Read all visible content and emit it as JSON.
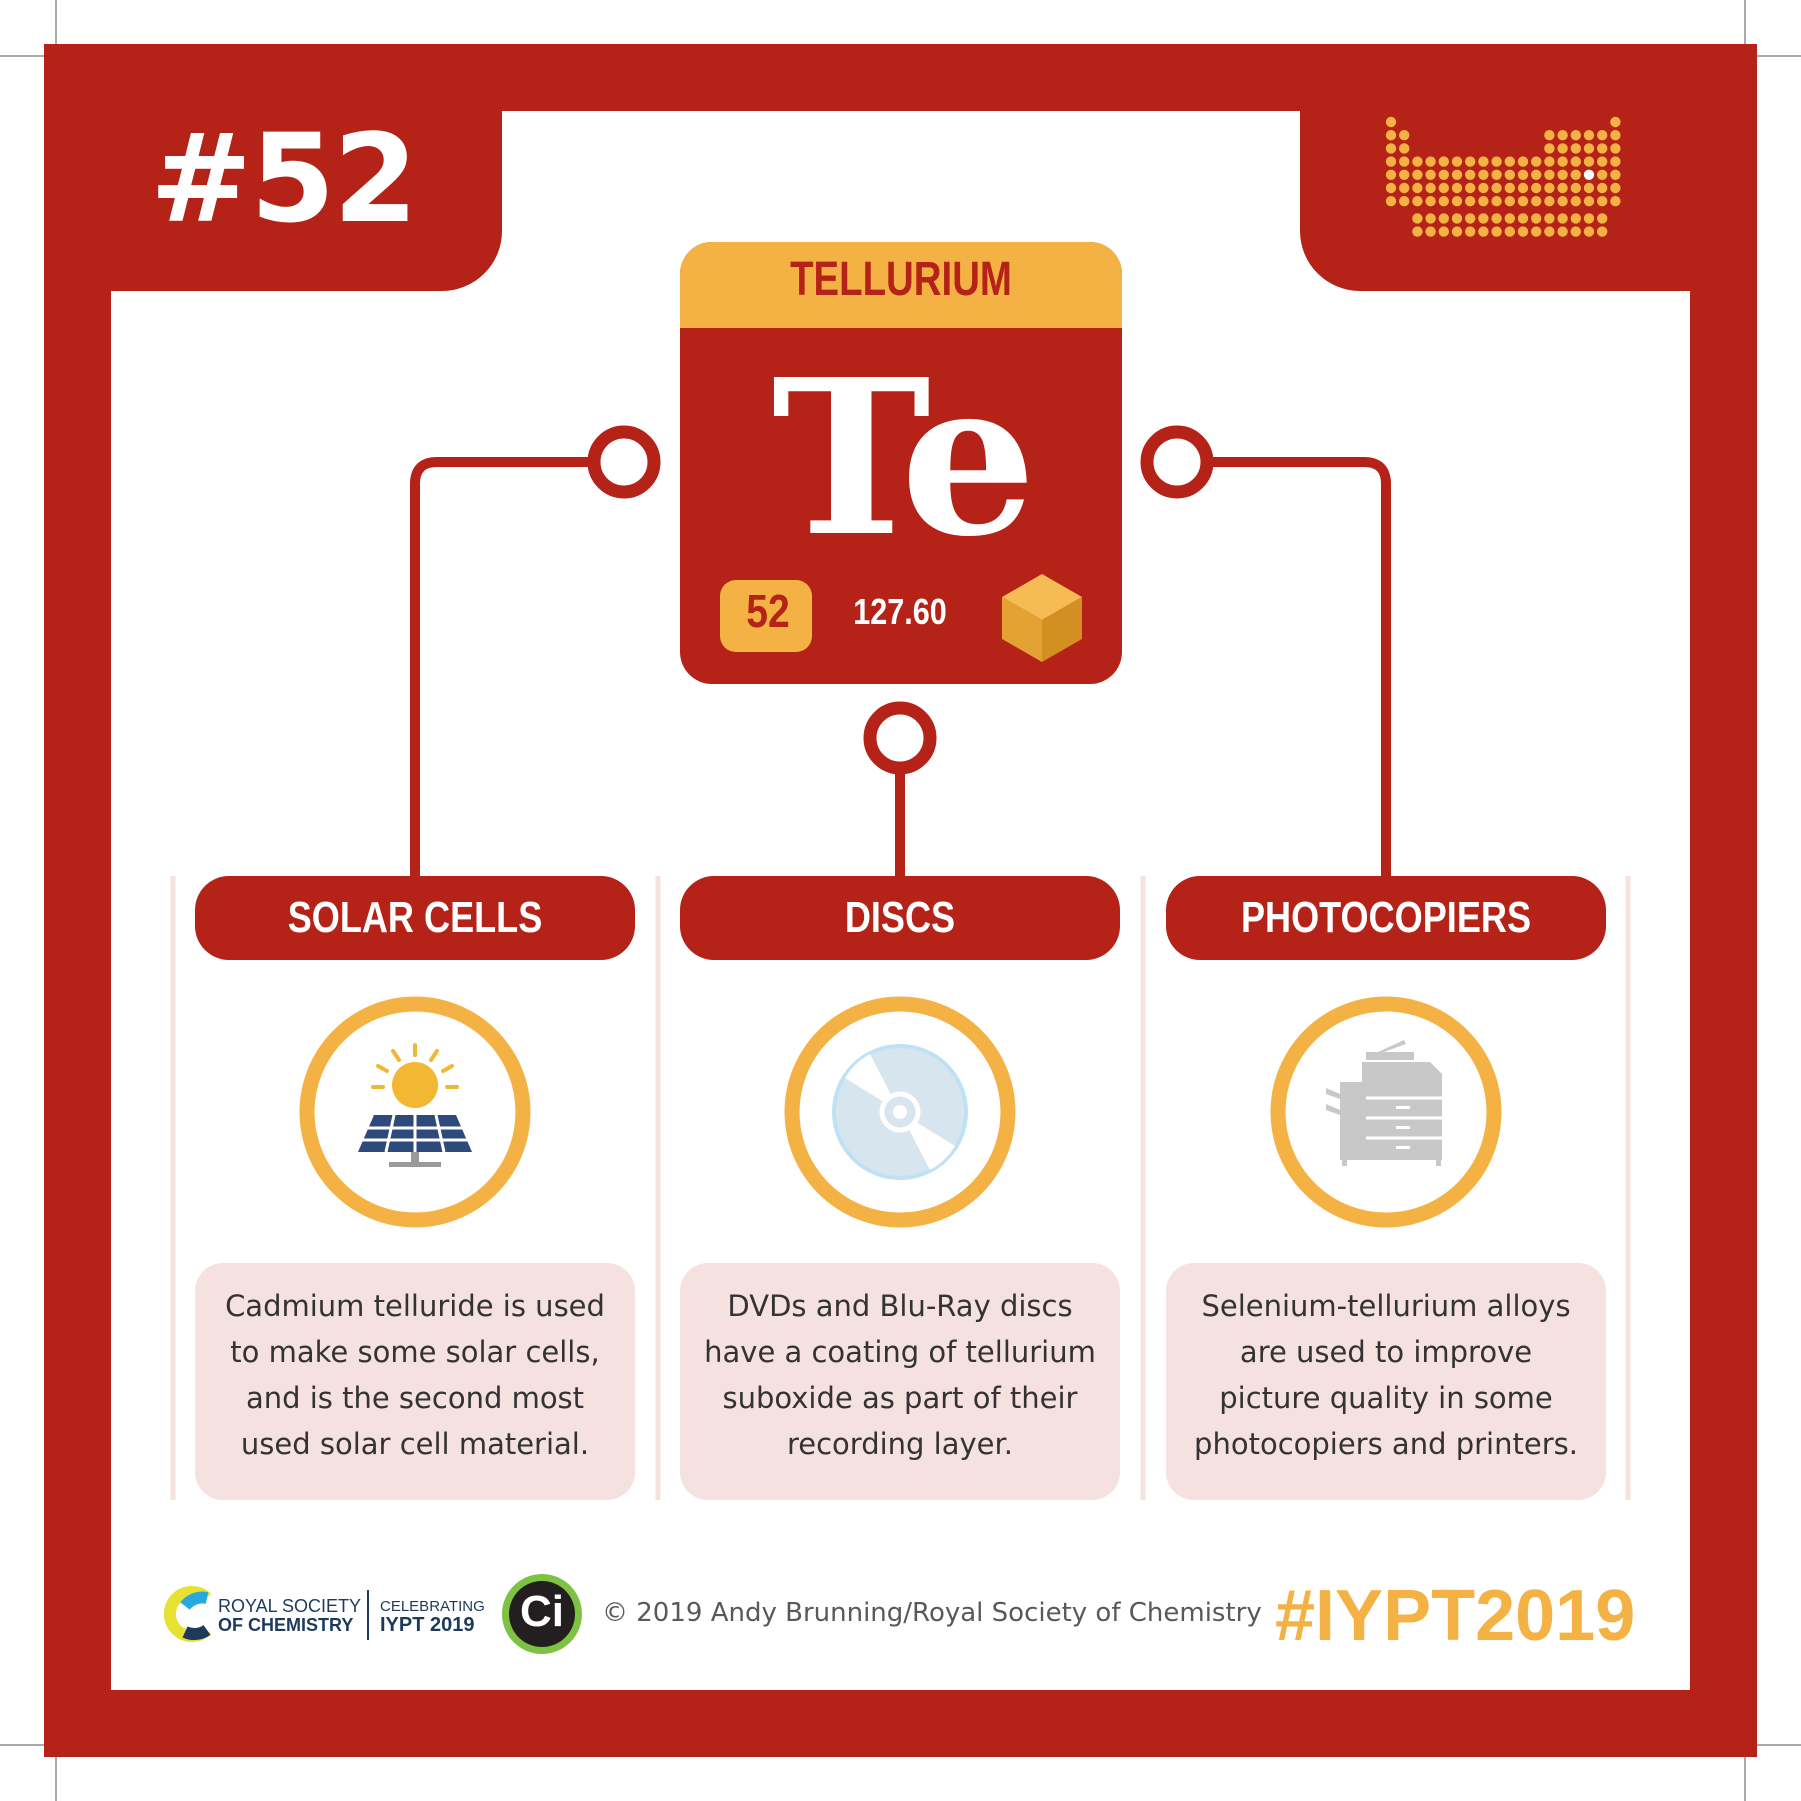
{
  "header": {
    "issue": "#52"
  },
  "element": {
    "name": "TELLURIUM",
    "symbol": "Te",
    "atomic_number": "52",
    "atomic_mass": "127.60"
  },
  "uses": [
    {
      "title": "SOLAR CELLS",
      "icon": "solar-panel-icon",
      "lines": [
        "Cadmium telluride is used",
        "to make some solar cells,",
        "and is the second most",
        "used solar cell material."
      ]
    },
    {
      "title": "DISCS",
      "icon": "disc-icon",
      "lines": [
        "DVDs and Blu-Ray discs",
        "have a coating of tellurium",
        "suboxide as part of their",
        "recording layer."
      ]
    },
    {
      "title": "PHOTOCOPIERS",
      "icon": "photocopier-icon",
      "lines": [
        "Selenium-tellurium alloys",
        "are used to improve",
        "picture quality in some",
        "photocopiers and printers."
      ]
    }
  ],
  "footer": {
    "rsc_line1": "ROYAL SOCIETY",
    "rsc_line2": "OF CHEMISTRY",
    "celebrating_line1": "CELEBRATING",
    "celebrating_line2": "IYPT 2019",
    "ci_logo": "Ci",
    "copyright": "© 2019 Andy Brunning/Royal Society of Chemistry",
    "hashtag": "#IYPT2019"
  },
  "colors": {
    "frame_red": "#b52217",
    "gold": "#f4b245",
    "pale_pink": "#f5e1df",
    "icon_grey": "#c8c8c8",
    "panel_blue": "#2e4a7a",
    "disc_blue": "#cfe2ee"
  }
}
